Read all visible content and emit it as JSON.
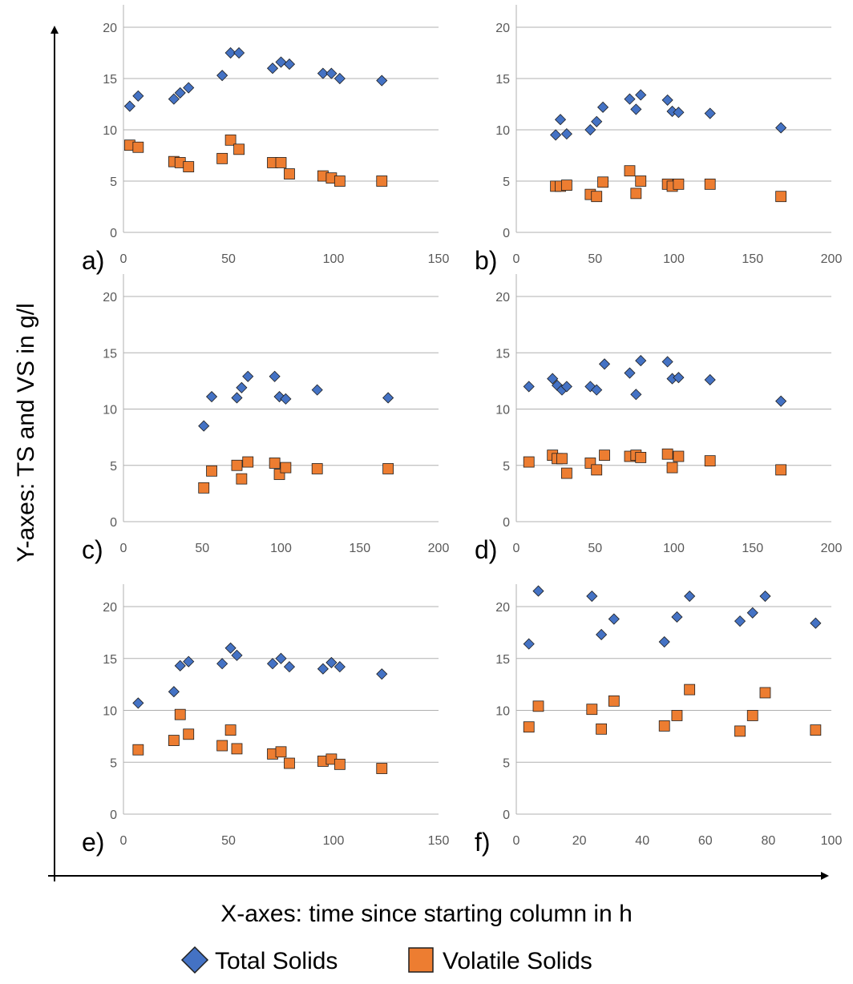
{
  "figure": {
    "ylabel": "Y-axes: TS and VS in g/l",
    "xlabel": "X-axes: time since starting column in h",
    "legend": {
      "placement": "bottom-center",
      "items": [
        {
          "name": "Total Solids",
          "marker": "diamond",
          "color": "#4472c4"
        },
        {
          "name": "Volatile Solids",
          "marker": "square",
          "color": "#ed7d31"
        }
      ]
    },
    "colors": {
      "ts": "#4472c4",
      "vs": "#ed7d31",
      "marker_border": "#1f1f1f",
      "grid": "#b0b0b0",
      "tick_text": "#595959"
    }
  },
  "chart_data": [
    {
      "type": "scatter",
      "panel_label": "a)",
      "xlim": [
        0,
        150
      ],
      "xticks": [
        0,
        50,
        100,
        150
      ],
      "ylim": [
        0,
        20
      ],
      "yticks": [
        0,
        5,
        10,
        15,
        20
      ],
      "grid": true,
      "series": [
        {
          "name": "Total Solids",
          "points": [
            [
              3,
              12.3
            ],
            [
              7,
              13.3
            ],
            [
              24,
              13
            ],
            [
              27,
              13.6
            ],
            [
              31,
              14.1
            ],
            [
              47,
              15.3
            ],
            [
              51,
              17.5
            ],
            [
              55,
              17.5
            ],
            [
              71,
              16
            ],
            [
              75,
              16.6
            ],
            [
              79,
              16.4
            ],
            [
              95,
              15.5
            ],
            [
              99,
              15.5
            ],
            [
              103,
              15
            ],
            [
              123,
              14.8
            ]
          ]
        },
        {
          "name": "Volatile Solids",
          "points": [
            [
              3,
              8.5
            ],
            [
              7,
              8.3
            ],
            [
              24,
              6.9
            ],
            [
              27,
              6.8
            ],
            [
              31,
              6.4
            ],
            [
              47,
              7.2
            ],
            [
              51,
              9
            ],
            [
              55,
              8.1
            ],
            [
              71,
              6.8
            ],
            [
              75,
              6.8
            ],
            [
              79,
              5.7
            ],
            [
              95,
              5.5
            ],
            [
              99,
              5.3
            ],
            [
              103,
              5
            ],
            [
              123,
              5
            ]
          ]
        }
      ]
    },
    {
      "type": "scatter",
      "panel_label": "b)",
      "xlim": [
        0,
        200
      ],
      "xticks": [
        0,
        50,
        100,
        150,
        200
      ],
      "ylim": [
        0,
        20
      ],
      "yticks": [
        0,
        5,
        10,
        15,
        20
      ],
      "grid": true,
      "series": [
        {
          "name": "Total Solids",
          "points": [
            [
              25,
              9.5
            ],
            [
              28,
              11
            ],
            [
              32,
              9.6
            ],
            [
              47,
              10
            ],
            [
              51,
              10.8
            ],
            [
              55,
              12.2
            ],
            [
              72,
              13
            ],
            [
              76,
              12
            ],
            [
              79,
              13.4
            ],
            [
              96,
              12.9
            ],
            [
              99,
              11.8
            ],
            [
              103,
              11.7
            ],
            [
              123,
              11.6
            ],
            [
              168,
              10.2
            ]
          ]
        },
        {
          "name": "Volatile Solids",
          "points": [
            [
              25,
              4.5
            ],
            [
              28,
              4.5
            ],
            [
              32,
              4.6
            ],
            [
              47,
              3.7
            ],
            [
              51,
              3.5
            ],
            [
              55,
              4.9
            ],
            [
              72,
              6
            ],
            [
              76,
              3.8
            ],
            [
              79,
              5
            ],
            [
              96,
              4.7
            ],
            [
              99,
              4.5
            ],
            [
              103,
              4.7
            ],
            [
              123,
              4.7
            ],
            [
              168,
              3.5
            ]
          ]
        }
      ]
    },
    {
      "type": "scatter",
      "panel_label": "c)",
      "xlim": [
        0,
        200
      ],
      "xticks": [
        0,
        50,
        100,
        150,
        200
      ],
      "ylim": [
        0,
        20
      ],
      "yticks": [
        0,
        5,
        10,
        15,
        20
      ],
      "grid": true,
      "series": [
        {
          "name": "Total Solids",
          "points": [
            [
              51,
              8.5
            ],
            [
              56,
              11.1
            ],
            [
              72,
              11
            ],
            [
              75,
              11.9
            ],
            [
              79,
              12.9
            ],
            [
              96,
              12.9
            ],
            [
              99,
              11.1
            ],
            [
              103,
              10.9
            ],
            [
              123,
              11.7
            ],
            [
              168,
              11
            ]
          ]
        },
        {
          "name": "Volatile Solids",
          "points": [
            [
              51,
              3
            ],
            [
              56,
              4.5
            ],
            [
              72,
              5
            ],
            [
              75,
              3.8
            ],
            [
              79,
              5.3
            ],
            [
              96,
              5.2
            ],
            [
              99,
              4.2
            ],
            [
              103,
              4.8
            ],
            [
              123,
              4.7
            ],
            [
              168,
              4.7
            ]
          ]
        }
      ]
    },
    {
      "type": "scatter",
      "panel_label": "d)",
      "xlim": [
        0,
        200
      ],
      "xticks": [
        0,
        50,
        100,
        150,
        200
      ],
      "ylim": [
        0,
        20
      ],
      "yticks": [
        0,
        5,
        10,
        15,
        20
      ],
      "grid": true,
      "series": [
        {
          "name": "Total Solids",
          "points": [
            [
              8,
              12
            ],
            [
              23,
              12.7
            ],
            [
              26,
              12.1
            ],
            [
              29,
              11.7
            ],
            [
              32,
              12
            ],
            [
              47,
              12
            ],
            [
              51,
              11.7
            ],
            [
              56,
              14
            ],
            [
              72,
              13.2
            ],
            [
              76,
              11.3
            ],
            [
              79,
              14.3
            ],
            [
              96,
              14.2
            ],
            [
              99,
              12.7
            ],
            [
              103,
              12.8
            ],
            [
              123,
              12.6
            ],
            [
              168,
              10.7
            ]
          ]
        },
        {
          "name": "Volatile Solids",
          "points": [
            [
              8,
              5.3
            ],
            [
              23,
              5.9
            ],
            [
              26,
              5.6
            ],
            [
              29,
              5.6
            ],
            [
              32,
              4.3
            ],
            [
              47,
              5.2
            ],
            [
              51,
              4.6
            ],
            [
              56,
              5.9
            ],
            [
              72,
              5.8
            ],
            [
              76,
              5.9
            ],
            [
              79,
              5.7
            ],
            [
              96,
              6
            ],
            [
              99,
              4.8
            ],
            [
              103,
              5.8
            ],
            [
              123,
              5.4
            ],
            [
              168,
              4.6
            ]
          ]
        }
      ]
    },
    {
      "type": "scatter",
      "panel_label": "e)",
      "xlim": [
        0,
        150
      ],
      "xticks": [
        0,
        50,
        100,
        150
      ],
      "ylim": [
        0,
        20
      ],
      "yticks": [
        0,
        5,
        10,
        15,
        20
      ],
      "grid": true,
      "series": [
        {
          "name": "Total Solids",
          "points": [
            [
              7,
              10.7
            ],
            [
              24,
              11.8
            ],
            [
              27,
              14.3
            ],
            [
              31,
              14.7
            ],
            [
              47,
              14.5
            ],
            [
              51,
              16
            ],
            [
              54,
              15.3
            ],
            [
              71,
              14.5
            ],
            [
              75,
              15
            ],
            [
              79,
              14.2
            ],
            [
              95,
              14
            ],
            [
              99,
              14.6
            ],
            [
              103,
              14.2
            ],
            [
              123,
              13.5
            ]
          ]
        },
        {
          "name": "Volatile Solids",
          "points": [
            [
              7,
              6.2
            ],
            [
              24,
              7.1
            ],
            [
              27,
              9.6
            ],
            [
              31,
              7.7
            ],
            [
              47,
              6.6
            ],
            [
              51,
              8.1
            ],
            [
              54,
              6.3
            ],
            [
              71,
              5.8
            ],
            [
              75,
              6
            ],
            [
              79,
              4.9
            ],
            [
              95,
              5.1
            ],
            [
              99,
              5.3
            ],
            [
              103,
              4.8
            ],
            [
              123,
              4.4
            ]
          ]
        }
      ]
    },
    {
      "type": "scatter",
      "panel_label": "f)",
      "xlim": [
        0,
        100
      ],
      "xticks": [
        0,
        20,
        40,
        60,
        80,
        100
      ],
      "ylim": [
        0,
        20
      ],
      "yticks": [
        0,
        5,
        10,
        15,
        20
      ],
      "grid": true,
      "series": [
        {
          "name": "Total Solids",
          "points": [
            [
              4,
              16.4
            ],
            [
              7,
              21.5
            ],
            [
              24,
              21
            ],
            [
              27,
              17.3
            ],
            [
              31,
              18.8
            ],
            [
              47,
              16.6
            ],
            [
              51,
              19
            ],
            [
              55,
              21
            ],
            [
              71,
              18.6
            ],
            [
              75,
              19.4
            ],
            [
              79,
              21
            ],
            [
              95,
              18.4
            ]
          ]
        },
        {
          "name": "Volatile Solids",
          "points": [
            [
              4,
              8.4
            ],
            [
              7,
              10.4
            ],
            [
              24,
              10.1
            ],
            [
              27,
              8.2
            ],
            [
              31,
              10.9
            ],
            [
              47,
              8.5
            ],
            [
              51,
              9.5
            ],
            [
              55,
              12
            ],
            [
              71,
              8
            ],
            [
              75,
              9.5
            ],
            [
              79,
              11.7
            ],
            [
              95,
              8.1
            ]
          ]
        }
      ]
    }
  ]
}
